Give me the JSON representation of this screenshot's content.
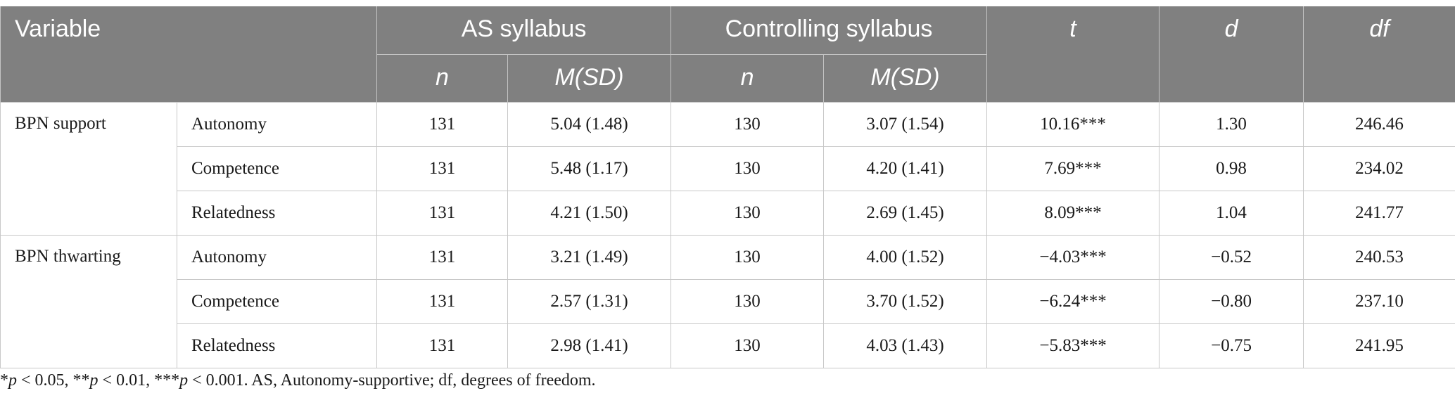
{
  "table": {
    "header": {
      "variable": "Variable",
      "as_syllabus": "AS syllabus",
      "controlling_syllabus": "Controlling syllabus",
      "t": "t",
      "d": "d",
      "df": "df",
      "n": "n",
      "msd": "M(SD)"
    },
    "groups": [
      {
        "label": "BPN support",
        "rows": [
          {
            "sub": "Autonomy",
            "as_n": "131",
            "as_msd": "5.04 (1.48)",
            "c_n": "130",
            "c_msd": "3.07 (1.54)",
            "t": "10.16***",
            "d": "1.30",
            "df": "246.46"
          },
          {
            "sub": "Competence",
            "as_n": "131",
            "as_msd": "5.48 (1.17)",
            "c_n": "130",
            "c_msd": "4.20 (1.41)",
            "t": "7.69***",
            "d": "0.98",
            "df": "234.02"
          },
          {
            "sub": "Relatedness",
            "as_n": "131",
            "as_msd": "4.21 (1.50)",
            "c_n": "130",
            "c_msd": "2.69 (1.45)",
            "t": "8.09***",
            "d": "1.04",
            "df": "241.77"
          }
        ]
      },
      {
        "label": "BPN thwarting",
        "rows": [
          {
            "sub": "Autonomy",
            "as_n": "131",
            "as_msd": "3.21 (1.49)",
            "c_n": "130",
            "c_msd": "4.00 (1.52)",
            "t": "−4.03***",
            "d": "−0.52",
            "df": "240.53"
          },
          {
            "sub": "Competence",
            "as_n": "131",
            "as_msd": "2.57 (1.31)",
            "c_n": "130",
            "c_msd": "3.70 (1.52)",
            "t": "−6.24***",
            "d": "−0.80",
            "df": "237.10"
          },
          {
            "sub": "Relatedness",
            "as_n": "131",
            "as_msd": "2.98 (1.41)",
            "c_n": "130",
            "c_msd": "4.03 (1.43)",
            "t": "−5.83***",
            "d": "−0.75",
            "df": "241.95"
          }
        ]
      }
    ]
  },
  "footnote": {
    "star1": "*",
    "p1": "p",
    "lt1": " < 0.05, **",
    "p2": "p",
    "lt2": " < 0.01, ***",
    "p3": "p",
    "rest": " < 0.001. AS, Autonomy-supportive; df, degrees of freedom."
  }
}
